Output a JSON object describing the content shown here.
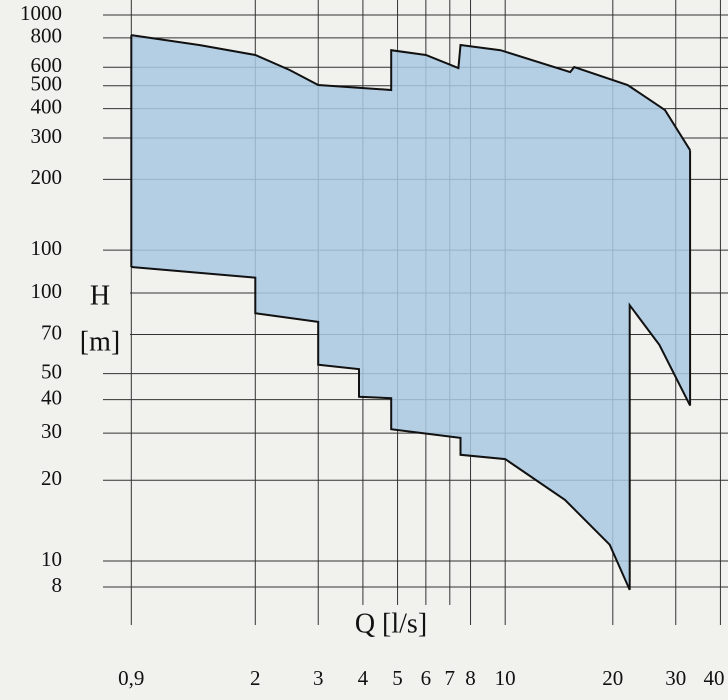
{
  "chart_data": {
    "type": "range-area",
    "y_label": "H",
    "y_unit": "[m]",
    "x_label": "Q [l/s]",
    "log_x": true,
    "log_y": true,
    "grid": true,
    "color": "#a9c8e2",
    "xlim": [
      0.75,
      42
    ],
    "xticks": [
      {
        "value": 0.9,
        "label": "0,9"
      },
      2,
      3,
      4,
      5,
      6,
      7,
      8,
      10,
      20,
      30,
      40
    ],
    "ylim": [
      5.77,
      1239
    ],
    "yticks": [
      100,
      70,
      50,
      40,
      30,
      20,
      10,
      8
    ],
    "y2lim": [
      2.54,
      1159
    ],
    "y2ticks": [
      1000,
      800,
      600,
      500,
      400,
      300,
      200,
      100
    ],
    "series": [
      {
        "name": "upper",
        "axis": "y2",
        "x": [
          0.9,
          1.4,
          2,
          2.5,
          3,
          4.8,
          4.8,
          6,
          7.4,
          7.5,
          9.7,
          15.2,
          15.6,
          22,
          28,
          32.9
        ],
        "values": [
          822,
          745,
          676,
          583,
          504,
          480,
          709,
          676,
          595,
          746,
          709,
          572,
          601,
          504,
          394,
          266
        ]
      },
      {
        "name": "lower",
        "axis": "y",
        "x": [
          0.9,
          2,
          2,
          3,
          3,
          3.9,
          3.9,
          4.8,
          4.8,
          7.5,
          7.5,
          10,
          14.7,
          19.6,
          22.3,
          22.3,
          27,
          32.9
        ],
        "values": [
          125,
          114,
          84,
          78,
          54,
          52,
          41,
          40.5,
          31,
          28.8,
          24.9,
          24,
          16.9,
          11.5,
          7.8,
          90,
          64,
          38
        ]
      }
    ]
  }
}
